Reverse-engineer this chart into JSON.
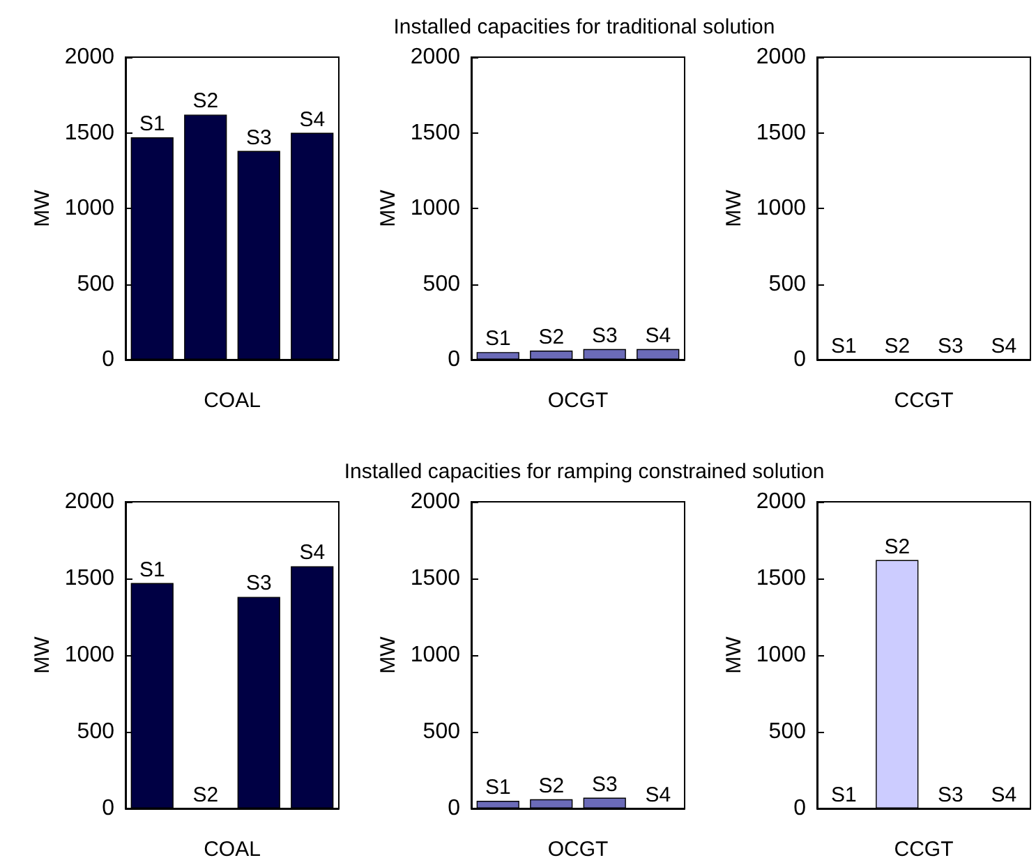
{
  "chart_data": [
    {
      "type": "bar",
      "categories": [
        "S1",
        "S2",
        "S3",
        "S4"
      ],
      "values": [
        1470,
        1620,
        1380,
        1500
      ],
      "color": "#000044",
      "xlabel": "COAL",
      "ylabel": "MW",
      "ylim": [
        0,
        2000
      ],
      "yticks": [
        0,
        500,
        1000,
        1500,
        2000
      ],
      "tick_labels": "y"
    },
    {
      "type": "bar",
      "title": "Installed capacities for traditional solution",
      "categories": [
        "S1",
        "S2",
        "S3",
        "S4"
      ],
      "values": [
        50,
        60,
        70,
        70
      ],
      "color": "#6b6bb8",
      "xlabel": "OCGT",
      "ylabel": "MW",
      "ylim": [
        0,
        2000
      ],
      "yticks": [
        0,
        500,
        1000,
        1500,
        2000
      ],
      "tick_labels": "y"
    },
    {
      "type": "bar",
      "categories": [
        "S1",
        "S2",
        "S3",
        "S4"
      ],
      "values": [
        0,
        0,
        0,
        0
      ],
      "color": "#ccccff",
      "xlabel": "CCGT",
      "ylabel": "MW",
      "ylim": [
        0,
        2000
      ],
      "yticks": [
        0,
        500,
        1000,
        1500,
        2000
      ],
      "tick_labels": "y"
    },
    {
      "type": "bar",
      "categories": [
        "S1",
        "S2",
        "S3",
        "S4"
      ],
      "values": [
        1470,
        0,
        1380,
        1580
      ],
      "color": "#000044",
      "xlabel": "COAL",
      "ylabel": "MW",
      "ylim": [
        0,
        2000
      ],
      "yticks": [
        0,
        500,
        1000,
        1500,
        2000
      ],
      "tick_labels": "y"
    },
    {
      "type": "bar",
      "title": "Installed capacities for ramping constrained solution",
      "categories": [
        "S1",
        "S2",
        "S3",
        "S4"
      ],
      "values": [
        50,
        60,
        70,
        0
      ],
      "color": "#6b6bb8",
      "xlabel": "OCGT",
      "ylabel": "MW",
      "ylim": [
        0,
        2000
      ],
      "yticks": [
        0,
        500,
        1000,
        1500,
        2000
      ],
      "tick_labels": "y"
    },
    {
      "type": "bar",
      "categories": [
        "S1",
        "S2",
        "S3",
        "S4"
      ],
      "values": [
        0,
        1620,
        0,
        0
      ],
      "color": "#ccccff",
      "xlabel": "CCGT",
      "ylabel": "MW",
      "ylim": [
        0,
        2000
      ],
      "yticks": [
        0,
        500,
        1000,
        1500,
        2000
      ],
      "tick_labels": "y"
    }
  ]
}
